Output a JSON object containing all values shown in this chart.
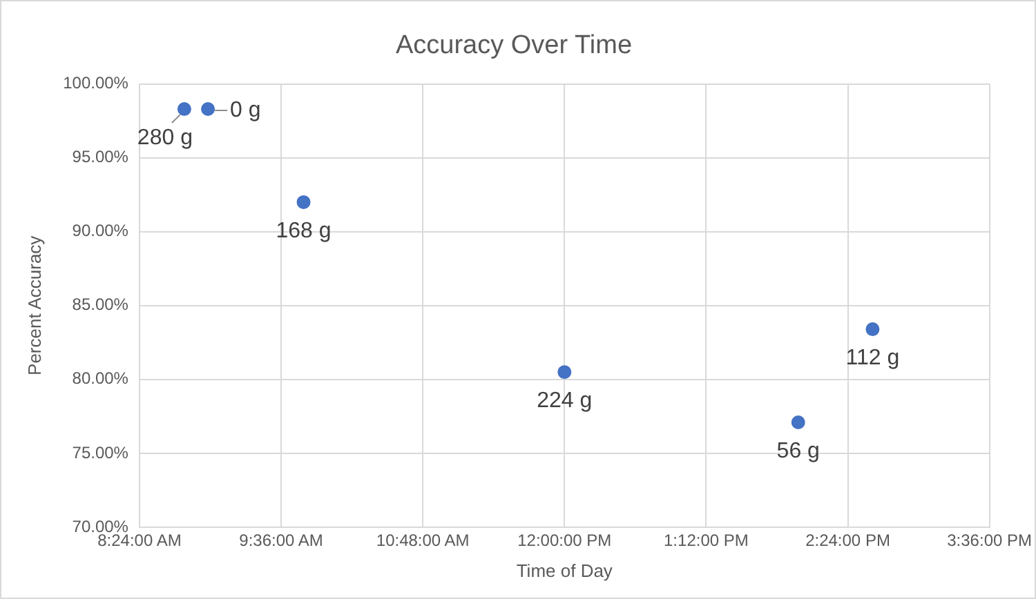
{
  "chart_data": {
    "type": "scatter",
    "title": "Accuracy Over Time",
    "xlabel": "Time of Day",
    "ylabel": "Percent Accuracy",
    "series": [
      {
        "color": "#4472c4",
        "x": [
          8.78,
          8.98,
          9.79,
          12.0,
          13.98,
          14.61
        ],
        "values": [
          98.3,
          98.3,
          92.0,
          80.5,
          77.1,
          83.4
        ]
      }
    ],
    "xlim": [
      8.4,
      15.6
    ],
    "xticks": [
      {
        "value": 8.4,
        "label": "8:24:00 AM"
      },
      {
        "value": 9.6,
        "label": "9:36:00 AM"
      },
      {
        "value": 10.8,
        "label": "10:48:00 AM"
      },
      {
        "value": 12.0,
        "label": "12:00:00 PM"
      },
      {
        "value": 13.2,
        "label": "1:12:00 PM"
      },
      {
        "value": 14.4,
        "label": "2:24:00 PM"
      },
      {
        "value": 15.6,
        "label": "3:36:00 PM"
      }
    ],
    "ylim": [
      70,
      100
    ],
    "yticks": [
      {
        "value": 70,
        "label": "70.00%"
      },
      {
        "value": 75,
        "label": "75.00%"
      },
      {
        "value": 80,
        "label": "80.00%"
      },
      {
        "value": 85,
        "label": "85.00%"
      },
      {
        "value": 90,
        "label": "90.00%"
      },
      {
        "value": 95,
        "label": "95.00%"
      },
      {
        "value": 100,
        "label": "100.00%"
      }
    ],
    "grid": true,
    "marker": "circle",
    "legend": false,
    "annotations": [
      {
        "text": "280 g",
        "x": 8.78,
        "y": 98.3
      },
      {
        "text": "0 g",
        "x": 8.98,
        "y": 98.3
      },
      {
        "text": "168 g",
        "x": 9.79,
        "y": 92.0
      },
      {
        "text": "224 g",
        "x": 12.0,
        "y": 80.5
      },
      {
        "text": "56 g",
        "x": 13.98,
        "y": 77.1
      },
      {
        "text": "112 g",
        "x": 14.61,
        "y": 83.4
      }
    ]
  }
}
